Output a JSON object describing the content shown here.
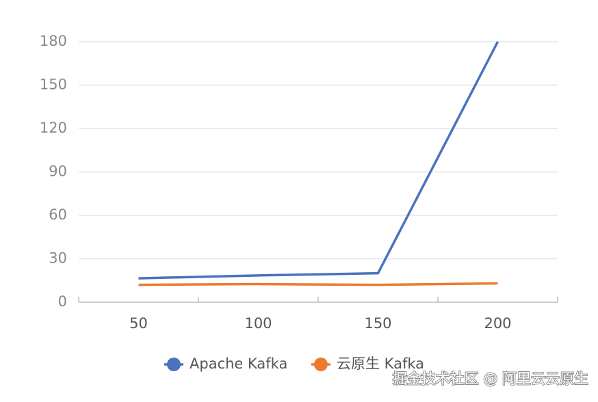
{
  "chart_data": {
    "type": "line",
    "categories": [
      "50",
      "100",
      "150",
      "200"
    ],
    "series": [
      {
        "name": "Apache Kafka",
        "color": "#4a72be",
        "values": [
          16.5,
          18.5,
          20,
          180
        ]
      },
      {
        "name": "云原生 Kafka",
        "color": "#ec7b30",
        "values": [
          12,
          12.5,
          12,
          13
        ]
      }
    ],
    "ylim": [
      0,
      180
    ],
    "yticks": [
      0,
      30,
      60,
      90,
      120,
      150,
      180
    ],
    "grid": true,
    "legend": "bottom",
    "watermark": "掘金技术社区 @ 阿里云云原生"
  }
}
